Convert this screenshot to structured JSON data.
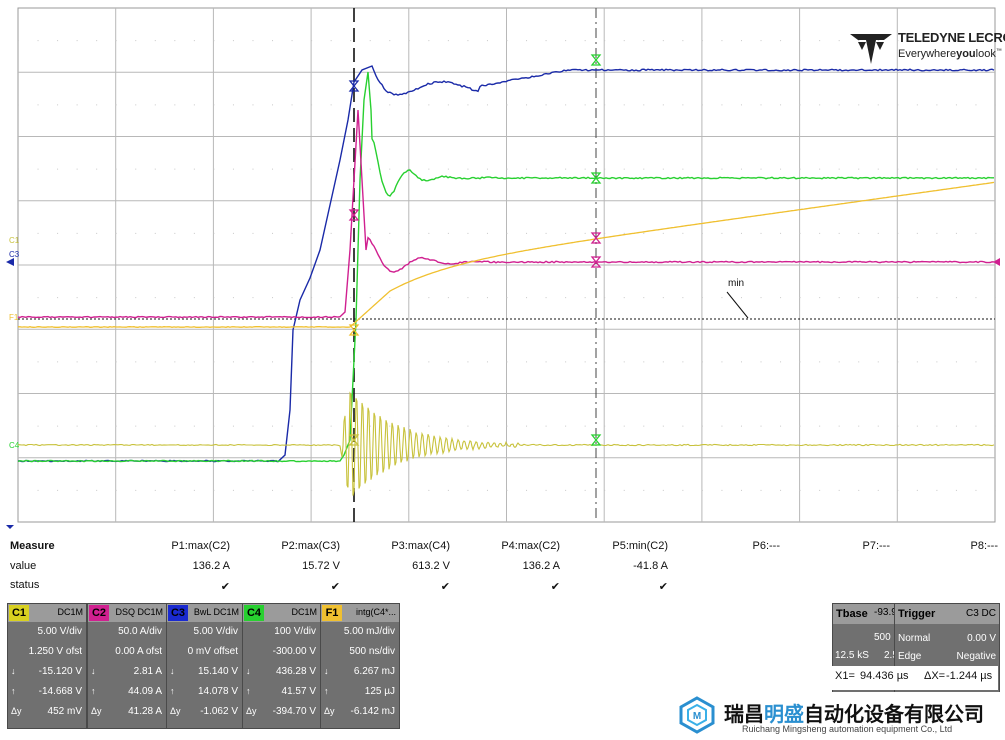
{
  "brand": {
    "name": "TELEDYNE LECROY",
    "tagline_pre": "Everywhere",
    "tagline_bold": "you",
    "tagline_post": "look",
    "tm": "™"
  },
  "scope": {
    "channel_labels": {
      "c1": "C1",
      "c3": "C3",
      "c4": "C4",
      "f1": "F1"
    },
    "min_label": "min",
    "colors": {
      "c1": "#c8c23c",
      "c2": "#d02090",
      "c3": "#1a2aa8",
      "c4": "#28d030",
      "f1": "#f0c030",
      "grid": "#b8b8b8",
      "frame": "#9a9a9a"
    }
  },
  "measure": {
    "headers": [
      "Measure",
      "value",
      "status"
    ],
    "params": [
      {
        "name": "P1:max(C2)",
        "value": "136.2 A",
        "status": "✔"
      },
      {
        "name": "P2:max(C3)",
        "value": "15.72 V",
        "status": "✔"
      },
      {
        "name": "P3:max(C4)",
        "value": "613.2 V",
        "status": "✔"
      },
      {
        "name": "P4:max(C2)",
        "value": "136.2 A",
        "status": "✔"
      },
      {
        "name": "P5:min(C2)",
        "value": "-41.8 A",
        "status": "✔"
      },
      {
        "name": "P6:---",
        "value": "",
        "status": ""
      },
      {
        "name": "P7:---",
        "value": "",
        "status": ""
      },
      {
        "name": "P8:---",
        "value": "",
        "status": ""
      }
    ]
  },
  "channels": [
    {
      "badge": "C1",
      "color": "#d8d020",
      "head": "DC1M",
      "lines": [
        "5.00 V/div",
        "1.250 V ofst",
        "-15.120 V",
        "-14.668 V",
        "452 mV"
      ],
      "arrows": [
        "",
        "",
        "↓",
        "↑",
        "Δy"
      ]
    },
    {
      "badge": "C2",
      "color": "#d02090",
      "head": "DSQ  DC1M",
      "lines": [
        "50.0 A/div",
        "0.00 A ofst",
        "2.81 A",
        "44.09 A",
        "41.28 A"
      ],
      "arrows": [
        "",
        "",
        "↓",
        "↑",
        "Δy"
      ]
    },
    {
      "badge": "C3",
      "color": "#1a2ad0",
      "head": "BwL  DC1M",
      "lines": [
        "5.00 V/div",
        "0 mV offset",
        "15.140 V",
        "14.078 V",
        "-1.062 V"
      ],
      "arrows": [
        "",
        "",
        "↓",
        "↑",
        "Δy"
      ]
    },
    {
      "badge": "C4",
      "color": "#28d030",
      "head": "DC1M",
      "lines": [
        "100 V/div",
        "-300.00 V",
        "436.28 V",
        "41.57 V",
        "-394.70 V"
      ],
      "arrows": [
        "",
        "",
        "↓",
        "↑",
        "Δy"
      ]
    },
    {
      "badge": "F1",
      "color": "#f0c030",
      "head": "intg(C4*...",
      "lines": [
        "5.00 mJ/div",
        "500 ns/div",
        "6.267 mJ",
        "125 µJ",
        "-6.142 mJ"
      ],
      "arrows": [
        "",
        "",
        "↓",
        "↑",
        "Δy"
      ]
    }
  ],
  "timebase": {
    "label": "Tbase",
    "delay": "-93.98 µs",
    "div": "500 ns/div",
    "samples": "12.5 kS",
    "rate": "2.5 GS/s",
    "x1_label": "X1=",
    "x1": "94.436 µs",
    "dx_label": "ΔX=",
    "dx": "-1.244 µs"
  },
  "trigger": {
    "label": "Trigger",
    "src": "C3 DC",
    "mode": "Normal",
    "level": "0.00 V",
    "type": "Edge",
    "slope": "Negative"
  },
  "watermark": {
    "zh_pre": "瑞昌",
    "zh_hl": "明盛",
    "zh_post": "自动化设备有限公司",
    "en": "Ruichang Mingsheng automation equipment Co., Ltd"
  }
}
